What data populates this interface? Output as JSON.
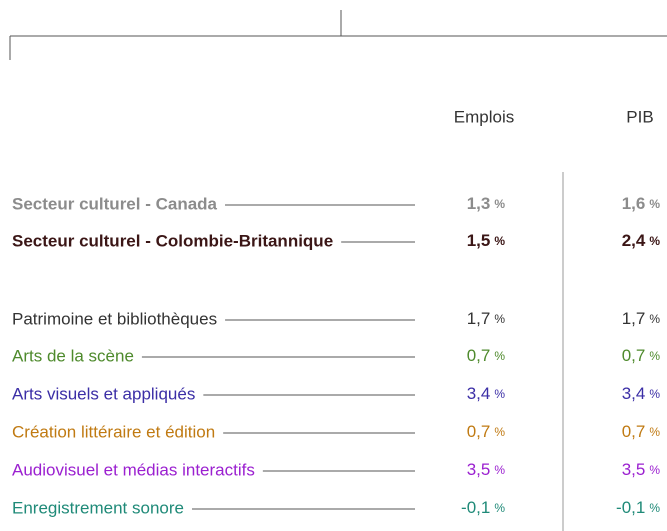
{
  "table": {
    "headers": [
      "Emplois",
      "PIB"
    ],
    "rows": [
      {
        "label": "Secteur culturel - Canada",
        "color": "#8c8c8c",
        "bold": true,
        "cells": [
          {
            "number": "1,3",
            "unit": "%"
          },
          {
            "number": "1,6",
            "unit": "%"
          }
        ]
      },
      {
        "label": "Secteur culturel - Colombie-Britannique",
        "color": "#3b1616",
        "bold": true,
        "cells": [
          {
            "number": "1,5",
            "unit": "%"
          },
          {
            "number": "2,4",
            "unit": "%"
          }
        ]
      },
      {
        "label": "Patrimoine et bibliothèques",
        "color": "#333333",
        "bold": false,
        "cells": [
          {
            "number": "1,7",
            "unit": "%"
          },
          {
            "number": "1,7",
            "unit": "%"
          }
        ]
      },
      {
        "label": "Arts de la scène",
        "color": "#4e8a2c",
        "bold": false,
        "cells": [
          {
            "number": "0,7",
            "unit": "%"
          },
          {
            "number": "0,7",
            "unit": "%"
          }
        ]
      },
      {
        "label": "Arts visuels et appliqués",
        "color": "#3b2ea6",
        "bold": false,
        "cells": [
          {
            "number": "3,4",
            "unit": "%"
          },
          {
            "number": "3,4",
            "unit": "%"
          }
        ]
      },
      {
        "label": "Création littéraire et édition",
        "color": "#c07a12",
        "bold": false,
        "cells": [
          {
            "number": "0,7",
            "unit": "%"
          },
          {
            "number": "0,7",
            "unit": "%"
          }
        ]
      },
      {
        "label": "Audiovisuel et médias interactifs",
        "color": "#9b20d0",
        "bold": false,
        "cells": [
          {
            "number": "3,5",
            "unit": "%"
          },
          {
            "number": "3,5",
            "unit": "%"
          }
        ]
      },
      {
        "label": "Enregistrement sonore",
        "color": "#1f8a78",
        "bold": false,
        "cells": [
          {
            "number": "-0,1",
            "unit": "%"
          },
          {
            "number": "-0,1",
            "unit": "%"
          }
        ]
      }
    ]
  }
}
